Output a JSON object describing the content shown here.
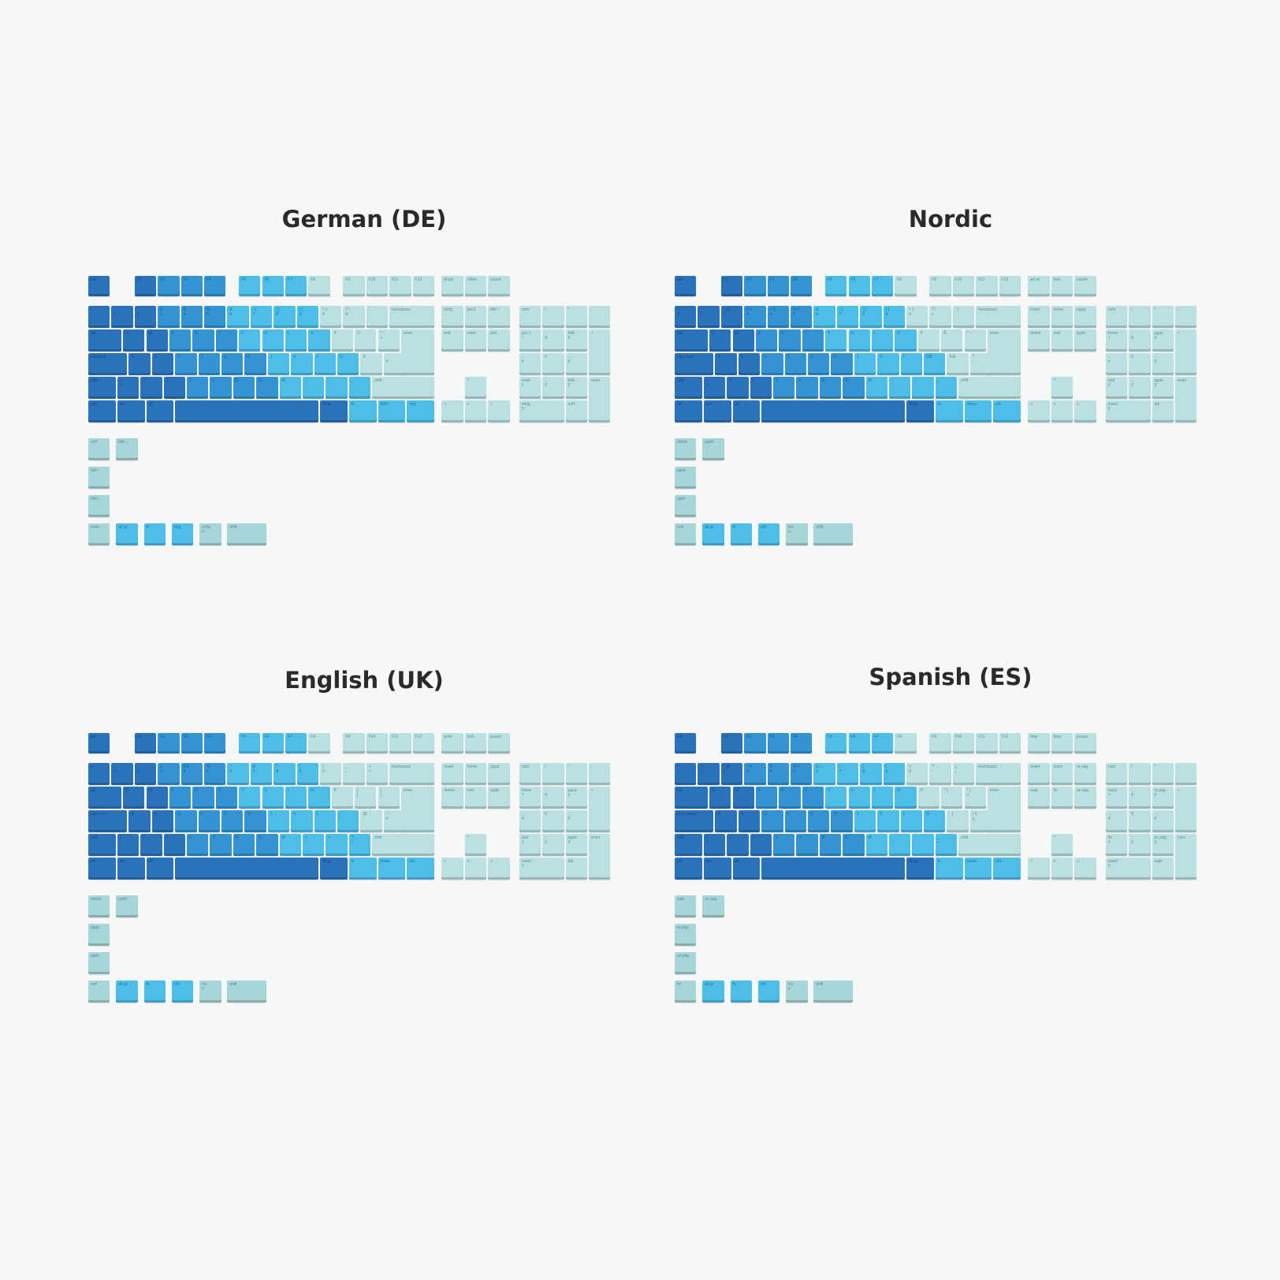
{
  "colors": {
    "dark_blue": "#2a73ba",
    "mid_blue": "#3494d3",
    "light_blue": "#4dbde9",
    "pale_mint": "#b9e1e2",
    "background": "#f6f7f7"
  },
  "layouts": [
    {
      "title": "German (DE)",
      "fn": [
        "F1",
        "F2",
        "F3",
        "F4",
        "F5",
        "F6",
        "F7",
        "F8",
        "F9",
        "F10",
        "F11",
        "F12"
      ],
      "nav_top": [
        "druck",
        "rollen",
        "pause"
      ],
      "nav_mid": [
        "einfg",
        "pos1",
        "bild ↑",
        "entf",
        "ende",
        "bild ↓"
      ],
      "row1": [
        [
          "^",
          "°"
        ],
        [
          "1",
          "!"
        ],
        [
          "2",
          "\""
        ],
        [
          "3",
          "§"
        ],
        [
          "4",
          "$"
        ],
        [
          "5",
          "%"
        ],
        [
          "6",
          "&"
        ],
        [
          "7",
          "/ {"
        ],
        [
          "8",
          "( ["
        ],
        [
          "9",
          ") ]"
        ],
        [
          "0",
          "= }"
        ],
        [
          "ß",
          "? \\"
        ],
        [
          "´",
          "`"
        ]
      ],
      "row2": [
        "Q",
        "W",
        "E",
        "R",
        "T",
        "Z",
        "U",
        "I",
        "O",
        "P",
        "Ü",
        [
          "+",
          "* ~"
        ]
      ],
      "row3": [
        "A",
        "S",
        "D",
        "F",
        "G",
        "H",
        "J",
        "K",
        "L",
        "Ö",
        "Ä",
        [
          "#",
          "'"
        ]
      ],
      "row4": [
        [
          "<",
          ">"
        ],
        "Y",
        "X",
        "C",
        "V",
        "B",
        "N",
        "M",
        [
          ",",
          ";"
        ],
        [
          ".",
          ":"
        ],
        [
          "-",
          "_"
        ]
      ],
      "mods": {
        "esc": "esc",
        "tab": "tab",
        "caps": "capslock",
        "shift_l": "shift",
        "shift_r": "shift",
        "ctrl": "strg",
        "win": "win",
        "alt": "alt",
        "altgr": "alt gr",
        "fn": "fn",
        "menu": "fn/bl",
        "ctrl_r": "strg",
        "backspace": "backspace",
        "enter": "enter"
      },
      "numpad": {
        "num": "num",
        "div": "/",
        "mul": "*",
        "sub": "-",
        "add": "+",
        "enter": "enter",
        "n7": [
          "7",
          "pos 1"
        ],
        "n8": [
          "8",
          "↑"
        ],
        "n9": [
          "9",
          "bild ↑"
        ],
        "n4": [
          "4",
          "←"
        ],
        "n5": [
          "5",
          ""
        ],
        "n6": [
          "6",
          "→"
        ],
        "n1": [
          "1",
          "ende"
        ],
        "n2": [
          "2",
          "↓"
        ],
        "n3": [
          "3",
          "bild ↓"
        ],
        "n0": [
          "0",
          "einfg"
        ],
        "dot": [
          ",",
          "entf"
        ]
      },
      "extras_col": [
        "entf",
        "bild ↓",
        "bild ↑",
        "bild ↓"
      ],
      "extras_row": [
        "ende",
        "alt gr",
        "fn",
        "strg",
        [
          "0",
          "einfg"
        ],
        "shift"
      ]
    },
    {
      "title": "Nordic",
      "fn": [
        "F1",
        "F2",
        "F3",
        "F4",
        "F5",
        "F6",
        "F7",
        "F8",
        "F9",
        "F10",
        "F11",
        "F12"
      ],
      "nav_top": [
        "prt sc",
        "lock",
        "pause"
      ],
      "nav_mid": [
        "insert",
        "home",
        "pgup",
        "delete",
        "end",
        "pgdn"
      ],
      "row1": [
        [
          "§",
          "½"
        ],
        [
          "1",
          "!"
        ],
        [
          "2",
          "\" @"
        ],
        [
          "3",
          "# £"
        ],
        [
          "4",
          "¤ $"
        ],
        [
          "5",
          "% €"
        ],
        [
          "6",
          "&"
        ],
        [
          "7",
          "/ {"
        ],
        [
          "8",
          "( ["
        ],
        [
          "9",
          ") ]"
        ],
        [
          "0",
          "= }"
        ],
        [
          "+",
          "? \\"
        ],
        [
          "´",
          "` |"
        ]
      ],
      "row2": [
        "Q",
        "W",
        "E",
        "R",
        "T",
        "Y",
        "U",
        "I",
        "O",
        "P",
        "Å",
        [
          "¨",
          "^ ~"
        ]
      ],
      "row3": [
        "A",
        "S",
        "D",
        "F",
        "G",
        "H",
        "J",
        "K",
        "L",
        "ÖØ",
        "ÄÆ",
        [
          "'",
          "*"
        ]
      ],
      "row4": [
        [
          "<",
          ">"
        ],
        "Z",
        "X",
        "C",
        "V",
        "B",
        "N",
        "M",
        [
          ",",
          ";"
        ],
        [
          ".",
          ":"
        ],
        [
          "-",
          "_"
        ]
      ],
      "mods": {
        "esc": "esc",
        "tab": "tab",
        "caps": "caps lock",
        "shift_l": "shift",
        "shift_r": "shift",
        "ctrl": "ctrl",
        "win": "win",
        "alt": "alt",
        "altgr": "alt gr",
        "fn": "fn",
        "menu": "menu",
        "ctrl_r": "ctrl",
        "backspace": "backspace",
        "enter": "enter"
      },
      "numpad": {
        "num": "num",
        "div": "/",
        "mul": "*",
        "sub": "-",
        "add": "+",
        "enter": "enter",
        "n7": [
          "7",
          "home"
        ],
        "n8": [
          "8",
          "↑"
        ],
        "n9": [
          "9",
          "pgup"
        ],
        "n4": [
          "4",
          "←"
        ],
        "n5": [
          "5",
          ""
        ],
        "n6": [
          "6",
          "→"
        ],
        "n1": [
          "1",
          "end"
        ],
        "n2": [
          "2",
          "↓"
        ],
        "n3": [
          "3",
          "pgdn"
        ],
        "n0": [
          "0",
          "insert"
        ],
        "dot": [
          ",",
          "del"
        ]
      },
      "extras_col": [
        "delete",
        "pgdn",
        "pgup",
        "pgdn"
      ],
      "extras_row": [
        "end",
        "alt gr",
        "fn",
        "ctrl",
        [
          "0",
          "ins"
        ],
        "shift"
      ]
    },
    {
      "title": "English (UK)",
      "fn": [
        "F1",
        "F2",
        "F3",
        "F4",
        "F5",
        "F6",
        "F7",
        "F8",
        "F9",
        "F10",
        "F11",
        "F12"
      ],
      "nav_top": [
        "print",
        "lock",
        "pause"
      ],
      "nav_mid": [
        "insert",
        "home",
        "pgup",
        "delete",
        "end",
        "pgdn"
      ],
      "row1": [
        [
          "`",
          "¬"
        ],
        [
          "1",
          "!"
        ],
        [
          "2",
          "\""
        ],
        [
          "3",
          "£"
        ],
        [
          "4",
          "$ €"
        ],
        [
          "5",
          "%"
        ],
        [
          "6",
          "^"
        ],
        [
          "7",
          "&"
        ],
        [
          "8",
          "*"
        ],
        [
          "9",
          "("
        ],
        [
          "0",
          ")"
        ],
        [
          "-",
          "_"
        ],
        [
          "=",
          "+"
        ]
      ],
      "row2": [
        "Q",
        "W",
        "E",
        "R",
        "T",
        "Y",
        "U",
        "I",
        "O",
        "P",
        [
          "[",
          "{"
        ],
        [
          "]",
          "}"
        ]
      ],
      "row3": [
        "A",
        "S",
        "D",
        "F",
        "G",
        "H",
        "J",
        "K",
        "L",
        [
          ";",
          ":"
        ],
        [
          "'",
          "@"
        ],
        [
          "#",
          "~"
        ]
      ],
      "row4": [
        [
          "\\",
          "|"
        ],
        "Z",
        "X",
        "C",
        "V",
        "B",
        "N",
        "M",
        [
          ",",
          "<"
        ],
        [
          ".",
          ">"
        ],
        [
          "/",
          "?"
        ]
      ],
      "mods": {
        "esc": "esc",
        "tab": "tab",
        "caps": "caps lock",
        "shift_l": "shift",
        "shift_r": "shift",
        "ctrl": "ctrl",
        "win": "win",
        "alt": "alt",
        "altgr": "alt gr",
        "fn": "fn",
        "menu": "mode",
        "ctrl_r": "ctrl",
        "backspace": "backspace",
        "enter": "enter"
      },
      "numpad": {
        "num": "num",
        "div": "/",
        "mul": "*",
        "sub": "-",
        "add": "+",
        "enter": "enter",
        "n7": [
          "7",
          "home"
        ],
        "n8": [
          "8",
          "↑"
        ],
        "n9": [
          "9",
          "pgup"
        ],
        "n4": [
          "4",
          "←"
        ],
        "n5": [
          "5",
          ""
        ],
        "n6": [
          "6",
          "→"
        ],
        "n1": [
          "1",
          "end"
        ],
        "n2": [
          "2",
          "↓"
        ],
        "n3": [
          "3",
          "pgdn"
        ],
        "n0": [
          "0",
          "insert"
        ],
        "dot": [
          ".",
          "del"
        ]
      },
      "extras_col": [
        "delete",
        "pgdn",
        "pgup",
        "pgdn"
      ],
      "extras_row": [
        "end",
        "alt gr",
        "fn",
        "ctrl",
        [
          "0",
          "ins"
        ],
        "shift"
      ]
    },
    {
      "title": "Spanish (ES)",
      "fn": [
        "F1",
        "F2",
        "F3",
        "F4",
        "F5",
        "F6",
        "F7",
        "F8",
        "F9",
        "F10",
        "F11",
        "F12"
      ],
      "nav_top": [
        "impr",
        "bloq",
        "pausa"
      ],
      "nav_mid": [
        "insert",
        "inicio",
        "re pág",
        "supr",
        "fin",
        "av pág"
      ],
      "row1": [
        [
          "º",
          "ª \\"
        ],
        [
          "1",
          "! |"
        ],
        [
          "2",
          "\" @"
        ],
        [
          "3",
          "· #"
        ],
        [
          "4",
          "$ ~"
        ],
        [
          "5",
          "% €"
        ],
        [
          "6",
          "& ¬"
        ],
        [
          "7",
          "/"
        ],
        [
          "8",
          "("
        ],
        [
          "9",
          ")"
        ],
        [
          "0",
          "="
        ],
        [
          "'",
          "?"
        ],
        [
          "¡",
          "¿"
        ]
      ],
      "row2": [
        "Q",
        "W",
        "E",
        "R",
        "T",
        "Y",
        "U",
        "I",
        "O",
        "P",
        [
          "`",
          "^ ["
        ],
        [
          "+",
          "* ]"
        ]
      ],
      "row3": [
        "A",
        "S",
        "D",
        "F",
        "G",
        "H",
        "J",
        "K",
        "L",
        "Ñ",
        [
          "´",
          "¨ {"
        ],
        [
          "ç",
          "} Ç"
        ]
      ],
      "row4": [
        [
          "<",
          ">"
        ],
        "Z",
        "X",
        "C",
        "V",
        "B",
        "N",
        "M",
        [
          ",",
          ";"
        ],
        [
          ".",
          ":"
        ],
        [
          "-",
          "_"
        ]
      ],
      "mods": {
        "esc": "esc",
        "tab": "tab",
        "caps": "bloq mayús",
        "shift_l": "shift",
        "shift_r": "shift",
        "ctrl": "ctrl",
        "win": "win",
        "alt": "alt",
        "altgr": "alt gr",
        "fn": "fn",
        "menu": "mode",
        "ctrl_r": "ctrl",
        "backspace": "backspace",
        "enter": "enter"
      },
      "numpad": {
        "num": "num",
        "div": "/",
        "mul": "*",
        "sub": "-",
        "add": "+",
        "enter": "intro",
        "n7": [
          "7",
          "inicio"
        ],
        "n8": [
          "8",
          "↑"
        ],
        "n9": [
          "9",
          "re pág"
        ],
        "n4": [
          "4",
          "←"
        ],
        "n5": [
          "5",
          ""
        ],
        "n6": [
          "6",
          "→"
        ],
        "n1": [
          "1",
          "fin"
        ],
        "n2": [
          "2",
          "↓"
        ],
        "n3": [
          "3",
          "av pág"
        ],
        "n0": [
          "0",
          "insert"
        ],
        "dot": [
          ".",
          "supr"
        ]
      },
      "extras_col": [
        "supr",
        "av pág",
        "re pág",
        "av pág"
      ],
      "extras_row": [
        "fin",
        "alt gr",
        "fn",
        "ctrl",
        [
          "0",
          "ins"
        ],
        "shift"
      ]
    }
  ]
}
